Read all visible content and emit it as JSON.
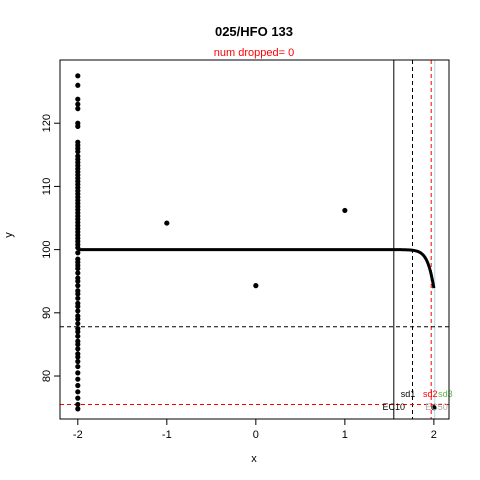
{
  "chart_data": {
    "type": "scatter",
    "title": "025/HFO 133",
    "subtitle": "num dropped= 0",
    "xlabel": "x",
    "ylabel": "y",
    "xlim": [
      -2.2,
      2.17
    ],
    "ylim": [
      73.2,
      130.0
    ],
    "x_ticks": [
      -2,
      -1,
      0,
      1,
      2
    ],
    "y_ticks": [
      80,
      90,
      100,
      110,
      120
    ],
    "points": {
      "x": [
        -2,
        -2,
        -2,
        -2,
        -2,
        -2,
        -2,
        -2,
        -2,
        -2,
        -2,
        -2,
        -2,
        -2,
        -2,
        -2,
        -2,
        -2,
        -2,
        -2,
        -2,
        -2,
        -2,
        -2,
        -2,
        -2,
        -2,
        -2,
        -2,
        -2,
        -2,
        -2,
        -2,
        -2,
        -2,
        -2,
        -2,
        -2,
        -2,
        -2,
        -2,
        -2,
        -2,
        -2,
        -2,
        -2,
        -2,
        -2,
        -2,
        -2,
        -2,
        -2,
        -2,
        -2,
        -2,
        -2,
        -2,
        -2,
        -2,
        -2,
        -2,
        -2,
        -2,
        -2,
        -2,
        -2,
        -2,
        -2,
        -2,
        -2,
        -2,
        -2,
        -2,
        -2,
        -2,
        -2,
        -1,
        0,
        1,
        2
      ],
      "y": [
        127.5,
        126.0,
        123.8,
        123.0,
        122.3,
        120.0,
        119.5,
        117.0,
        116.5,
        116.0,
        115.5,
        114.8,
        114.3,
        113.8,
        113.3,
        112.8,
        112.3,
        111.8,
        111.3,
        110.8,
        110.3,
        109.8,
        109.3,
        108.8,
        108.3,
        107.8,
        107.3,
        106.8,
        106.3,
        105.8,
        105.3,
        104.8,
        104.3,
        103.8,
        103.3,
        102.8,
        102.3,
        101.8,
        101.3,
        100.8,
        100.3,
        99.5,
        98.5,
        98.0,
        97.5,
        97.0,
        96.3,
        95.5,
        95.0,
        94.3,
        93.5,
        93.0,
        92.3,
        91.5,
        91.0,
        90.3,
        89.5,
        89.0,
        88.3,
        87.5,
        87.0,
        86.3,
        85.5,
        85.0,
        84.3,
        83.5,
        83.0,
        82.3,
        81.5,
        80.5,
        79.5,
        78.5,
        77.5,
        76.5,
        75.5,
        74.8,
        104.2,
        94.3,
        106.2,
        75.0
      ]
    },
    "curve": {
      "type": "line",
      "upper": 100.0,
      "lower": 75.5,
      "ec50": 2.06,
      "hill": 8.0
    },
    "reference_lines": {
      "horizontal": [
        {
          "y": 87.8,
          "color": "#000000",
          "style": "dashed"
        },
        {
          "y": 75.5,
          "color": "#ff0000",
          "style": "dashed"
        }
      ],
      "vertical": [
        {
          "x": 1.55,
          "color": "#000000",
          "style": "solid"
        },
        {
          "x": 1.76,
          "color": "#000000",
          "style": "dashed"
        },
        {
          "x": 1.97,
          "color": "#ff0000",
          "style": "dashed"
        },
        {
          "x": 2.01,
          "color": "#add8e6",
          "style": "solid"
        }
      ]
    },
    "annotations": [
      {
        "text": "sd1",
        "x": 1.71,
        "y": 76.7,
        "color": "#000000"
      },
      {
        "text": "sd2",
        "x": 1.96,
        "y": 76.7,
        "color": "#ff0000"
      },
      {
        "text": "sd3",
        "x": 2.13,
        "y": 76.7,
        "color": "#55bb44"
      },
      {
        "text": "EC10",
        "x": 1.55,
        "y": 74.6,
        "color": "#000000"
      },
      {
        "text": "EC50",
        "x": 2.03,
        "y": 74.6,
        "color": "#aaaaaa"
      }
    ],
    "colors": {
      "points": "#000000",
      "curve": "#000000"
    }
  }
}
